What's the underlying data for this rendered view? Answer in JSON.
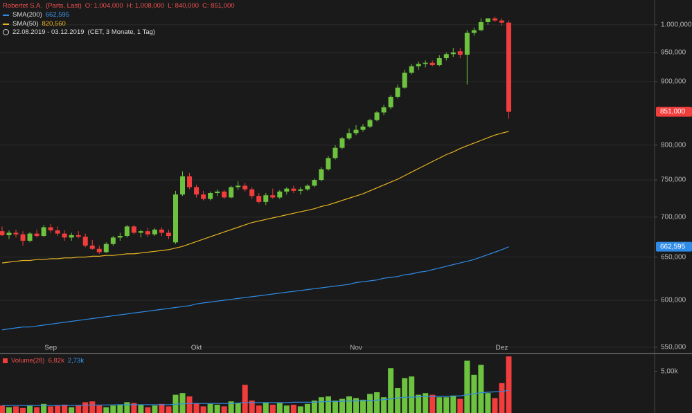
{
  "chart_data": [
    {
      "type": "candlestick",
      "title": "Robertet S.A.",
      "subtitle": "(Parts, Last)",
      "ohlc_legend": [
        "O: 1.004,000",
        "H: 1.008,000",
        "L: 840,000",
        "C: 851,000"
      ],
      "date_range": "22.08.2019 - 03.12.2019",
      "period": "(CET, 3 Monate, 1 Tag)",
      "categories": [
        null,
        null,
        null,
        null,
        null,
        null,
        null,
        "Sep",
        null,
        null,
        null,
        null,
        null,
        null,
        null,
        null,
        null,
        null,
        null,
        null,
        null,
        null,
        null,
        null,
        null,
        null,
        null,
        null,
        "Okt",
        null,
        null,
        null,
        null,
        null,
        null,
        null,
        null,
        null,
        null,
        null,
        null,
        null,
        null,
        null,
        null,
        null,
        null,
        null,
        null,
        null,
        null,
        "Nov",
        null,
        null,
        null,
        null,
        null,
        null,
        null,
        null,
        null,
        null,
        null,
        null,
        null,
        null,
        null,
        null,
        null,
        null,
        null,
        null,
        "Dez",
        null
      ],
      "open": [
        682,
        677,
        680,
        678,
        670,
        679,
        676,
        687,
        683,
        679,
        674,
        677,
        675,
        664,
        660,
        656,
        666,
        674,
        676,
        688,
        680,
        682,
        678,
        684,
        680,
        668,
        730,
        755,
        740,
        730,
        724,
        732,
        734,
        726,
        740,
        742,
        737,
        728,
        720,
        729,
        726,
        734,
        738,
        735,
        737,
        742,
        750,
        765,
        781,
        796,
        810,
        818,
        823,
        828,
        838,
        850,
        858,
        875,
        890,
        915,
        926,
        930,
        932,
        928,
        940,
        947,
        952,
        946,
        985,
        990,
        1005,
        1012,
        1008,
        1004
      ],
      "high": [
        688,
        683,
        684,
        682,
        681,
        684,
        690,
        691,
        688,
        683,
        680,
        682,
        679,
        671,
        664,
        668,
        676,
        680,
        690,
        690,
        684,
        686,
        686,
        687,
        684,
        735,
        762,
        760,
        743,
        735,
        734,
        737,
        736,
        742,
        748,
        746,
        740,
        732,
        732,
        738,
        736,
        740,
        742,
        740,
        744,
        752,
        768,
        784,
        800,
        812,
        825,
        830,
        832,
        840,
        852,
        862,
        878,
        895,
        920,
        930,
        934,
        936,
        936,
        945,
        950,
        958,
        958,
        990,
        995,
        1012,
        1012,
        1015,
        1012,
        1008
      ],
      "low": [
        676,
        672,
        674,
        664,
        668,
        674,
        675,
        680,
        676,
        670,
        670,
        673,
        662,
        659,
        654,
        655,
        664,
        670,
        674,
        678,
        674,
        675,
        676,
        676,
        672,
        666,
        728,
        737,
        726,
        722,
        722,
        728,
        724,
        725,
        736,
        734,
        724,
        718,
        716,
        724,
        724,
        730,
        732,
        730,
        735,
        740,
        748,
        763,
        779,
        794,
        808,
        815,
        820,
        826,
        836,
        846,
        855,
        872,
        888,
        912,
        920,
        924,
        926,
        926,
        936,
        942,
        940,
        895,
        980,
        988,
        1000,
        1005,
        998,
        840
      ],
      "close": [
        677,
        680,
        678,
        670,
        679,
        676,
        687,
        683,
        679,
        674,
        677,
        675,
        664,
        660,
        656,
        666,
        674,
        676,
        688,
        680,
        682,
        678,
        684,
        680,
        676,
        730,
        755,
        740,
        730,
        724,
        732,
        734,
        726,
        740,
        742,
        737,
        728,
        720,
        729,
        726,
        734,
        738,
        735,
        737,
        742,
        750,
        765,
        781,
        796,
        810,
        818,
        823,
        828,
        838,
        850,
        858,
        875,
        890,
        915,
        926,
        930,
        932,
        928,
        940,
        947,
        950,
        946,
        985,
        990,
        1005,
        1012,
        1008,
        1004,
        851
      ],
      "close_label": "851,000",
      "up_color": "#6dc33f",
      "down_color": "#f23d3d",
      "series": [
        {
          "name": "SMA(200)",
          "color": "#2f8be6",
          "value_label": "662,595",
          "values": [
            568,
            569,
            570,
            571,
            571,
            572,
            573,
            574,
            575,
            576,
            577,
            578,
            579,
            580,
            581,
            582,
            583,
            584,
            585,
            586,
            587,
            588,
            589,
            590,
            591,
            592,
            593,
            594,
            596,
            597,
            598,
            599,
            600,
            601,
            602,
            603,
            604,
            605,
            606,
            607,
            608,
            609,
            610,
            611,
            612,
            613,
            614,
            615,
            616,
            617,
            618,
            620,
            621,
            622,
            623,
            625,
            626,
            627,
            629,
            630,
            632,
            633,
            635,
            637,
            639,
            641,
            643,
            645,
            647,
            650,
            653,
            656,
            659,
            662.595
          ]
        },
        {
          "name": "SMA(50)",
          "color": "#e6b422",
          "value_label": "820,560",
          "values": [
            643,
            644,
            645,
            646,
            646,
            647,
            647,
            648,
            648,
            649,
            649,
            650,
            650,
            651,
            651,
            652,
            652,
            653,
            654,
            654,
            655,
            656,
            657,
            658,
            659,
            661,
            663,
            666,
            669,
            672,
            675,
            678,
            681,
            684,
            687,
            690,
            693,
            695,
            697,
            699,
            701,
            703,
            705,
            707,
            709,
            711,
            714,
            716,
            719,
            722,
            725,
            728,
            731,
            735,
            739,
            743,
            747,
            751,
            756,
            761,
            766,
            771,
            776,
            781,
            786,
            790,
            795,
            799,
            803,
            807,
            811,
            815,
            818,
            820.56
          ]
        }
      ],
      "log_scale": true,
      "ylim": [
        543.6,
        1047
      ],
      "grid": true,
      "yticks": [
        {
          "value": 550,
          "label": "550,000"
        },
        {
          "value": 600,
          "label": "600,000"
        },
        {
          "value": 650,
          "label": "650,000"
        },
        {
          "value": 700,
          "label": "700,000"
        },
        {
          "value": 750,
          "label": "750,000"
        },
        {
          "value": 800,
          "label": "800,000"
        },
        {
          "value": 900,
          "label": "900,000"
        },
        {
          "value": 950,
          "label": "950,000"
        },
        {
          "value": 1000,
          "label": "1.000,000"
        }
      ]
    },
    {
      "type": "bar",
      "title": "Volume(28)",
      "value_label": "6,82k",
      "values": [
        900,
        700,
        800,
        600,
        900,
        700,
        1100,
        800,
        900,
        1000,
        700,
        900,
        1300,
        1400,
        900,
        700,
        900,
        1000,
        1300,
        1200,
        1000,
        700,
        900,
        1100,
        800,
        2200,
        2400,
        2000,
        1200,
        800,
        1100,
        1000,
        800,
        1400,
        1200,
        3400,
        1500,
        900,
        1300,
        1000,
        1200,
        900,
        1000,
        800,
        1100,
        1500,
        1900,
        2000,
        1500,
        1700,
        2000,
        1800,
        1600,
        2300,
        2500,
        1900,
        5400,
        3000,
        4200,
        4400,
        2200,
        2400,
        2200,
        1900,
        1900,
        2100,
        1700,
        6300,
        4600,
        5800,
        2400,
        1800,
        3600,
        6820
      ],
      "ma": {
        "color": "#2f8be6",
        "value_label": "2,73k",
        "values": [
          900,
          900,
          900,
          900,
          900,
          900,
          900,
          900,
          900,
          900,
          900,
          920,
          940,
          960,
          960,
          960,
          980,
          1000,
          1000,
          1000,
          1000,
          1000,
          1000,
          1000,
          1000,
          1050,
          1100,
          1150,
          1150,
          1150,
          1150,
          1150,
          1150,
          1150,
          1200,
          1250,
          1250,
          1250,
          1250,
          1250,
          1250,
          1250,
          1300,
          1300,
          1300,
          1300,
          1350,
          1400,
          1400,
          1400,
          1450,
          1450,
          1500,
          1500,
          1550,
          1600,
          1700,
          1800,
          1900,
          1900,
          1950,
          2000,
          2000,
          2000,
          2000,
          2050,
          2050,
          2200,
          2300,
          2450,
          2500,
          2550,
          2600,
          2730
        ]
      },
      "ylim": [
        0,
        7170
      ],
      "yticks": [
        {
          "value": 5000,
          "label": "5,00k"
        }
      ]
    }
  ]
}
